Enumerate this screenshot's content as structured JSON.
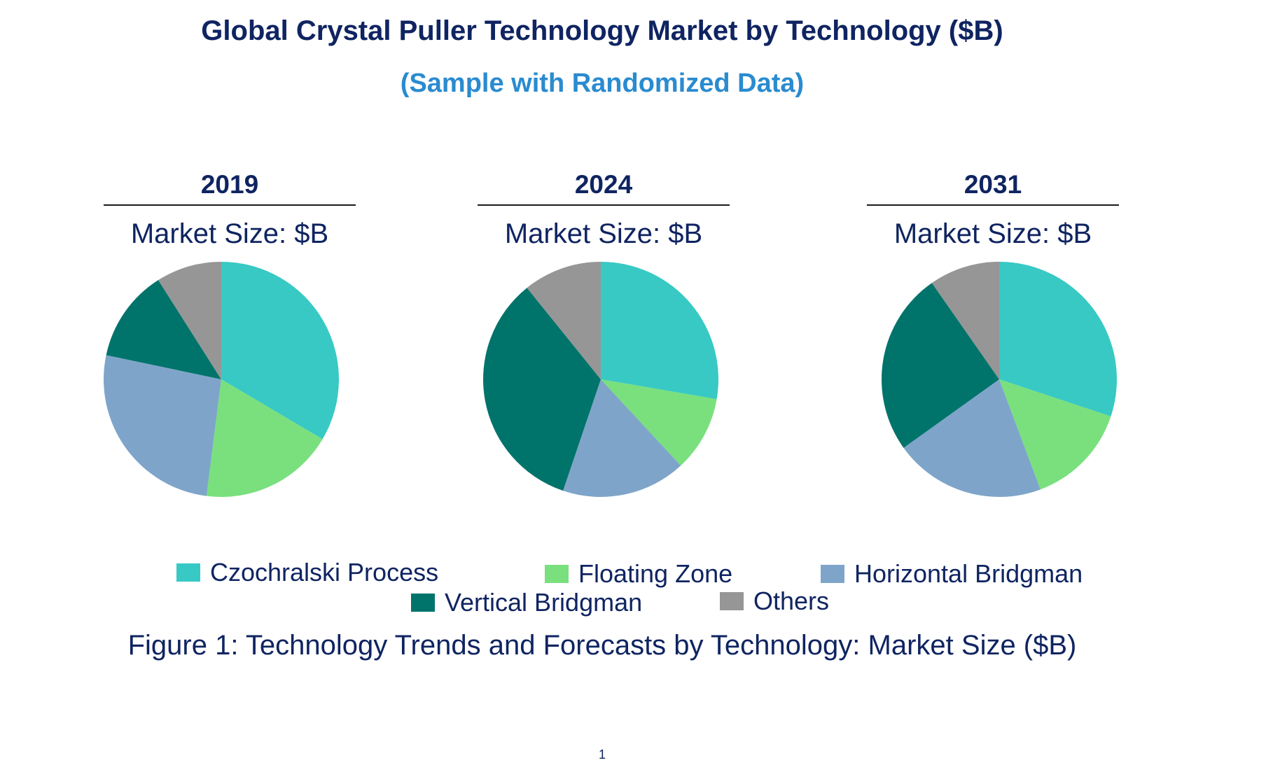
{
  "title": "Global Crystal Puller Technology Market by Technology ($B)",
  "subtitle": "(Sample with Randomized Data)",
  "caption": "Figure 1: Technology Trends and Forecasts by Technology: Market Size ($B)",
  "page_number": "1",
  "chart_data": [
    {
      "type": "pie",
      "title": "2019",
      "subtitle": "Market Size: $B",
      "categories": [
        "Czochralski Process",
        "Floating Zone",
        "Horizontal Bridgman",
        "Vertical Bridgman",
        "Others"
      ],
      "values": [
        33.5,
        18.5,
        26.3,
        12.7,
        9.0
      ],
      "colors": [
        "#38c9c4",
        "#79e07d",
        "#7ea5c9",
        "#00736b",
        "#969696"
      ]
    },
    {
      "type": "pie",
      "title": "2024",
      "subtitle": "Market Size: $B",
      "categories": [
        "Czochralski Process",
        "Floating Zone",
        "Horizontal Bridgman",
        "Vertical Bridgman",
        "Others"
      ],
      "values": [
        27.7,
        10.4,
        17.1,
        34.0,
        10.8
      ],
      "colors": [
        "#38c9c4",
        "#79e07d",
        "#7ea5c9",
        "#00736b",
        "#969696"
      ]
    },
    {
      "type": "pie",
      "title": "2031",
      "subtitle": "Market Size: $B",
      "categories": [
        "Czochralski Process",
        "Floating Zone",
        "Horizontal Bridgman",
        "Vertical Bridgman",
        "Others"
      ],
      "values": [
        30.1,
        14.2,
        20.8,
        25.2,
        9.7
      ],
      "colors": [
        "#38c9c4",
        "#79e07d",
        "#7ea5c9",
        "#00736b",
        "#969696"
      ]
    }
  ],
  "legend": [
    {
      "label": "Czochralski Process",
      "color": "#38c9c4"
    },
    {
      "label": "Floating Zone",
      "color": "#79e07d"
    },
    {
      "label": "Horizontal Bridgman",
      "color": "#7ea5c9"
    },
    {
      "label": "Vertical Bridgman",
      "color": "#00736b"
    },
    {
      "label": "Others",
      "color": "#969696"
    }
  ]
}
